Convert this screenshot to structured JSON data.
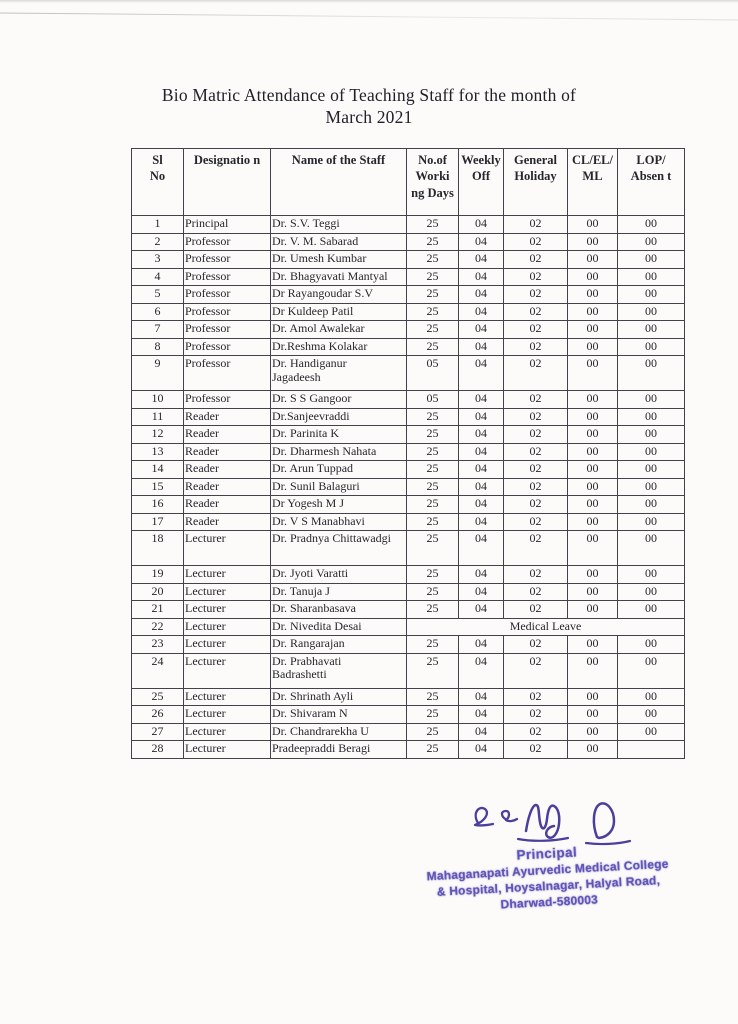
{
  "document": {
    "title_line1": "Bio Matric Attendance of Teaching Staff for the month of",
    "title_line2": "March 2021"
  },
  "table": {
    "headers": [
      "Sl\nNo",
      "Designatio n",
      "Name of the Staff",
      "No.of\nWorki\nng Days",
      "Weekly\nOff",
      "General\nHoliday",
      "CL/EL/\nML",
      "LOP/\nAbsen t"
    ],
    "rows": [
      {
        "sl": "1",
        "designation": "Principal",
        "name": "Dr. S.V. Teggi",
        "working_days": "25",
        "weekly_off": "04",
        "general_holiday": "02",
        "cl_el_ml": "00",
        "lop_absent": "00"
      },
      {
        "sl": "2",
        "designation": "Professor",
        "name": "Dr. V. M. Sabarad",
        "working_days": "25",
        "weekly_off": "04",
        "general_holiday": "02",
        "cl_el_ml": "00",
        "lop_absent": "00"
      },
      {
        "sl": "3",
        "designation": "Professor",
        "name": "Dr. Umesh Kumbar",
        "working_days": "25",
        "weekly_off": "04",
        "general_holiday": "02",
        "cl_el_ml": "00",
        "lop_absent": "00"
      },
      {
        "sl": "4",
        "designation": "Professor",
        "name": "Dr. Bhagyavati Mantyal",
        "working_days": "25",
        "weekly_off": "04",
        "general_holiday": "02",
        "cl_el_ml": "00",
        "lop_absent": "00"
      },
      {
        "sl": "5",
        "designation": "Professor",
        "name": "Dr Rayangoudar S.V",
        "working_days": "25",
        "weekly_off": "04",
        "general_holiday": "02",
        "cl_el_ml": "00",
        "lop_absent": "00"
      },
      {
        "sl": "6",
        "designation": "Professor",
        "name": "Dr Kuldeep Patil",
        "working_days": "25",
        "weekly_off": "04",
        "general_holiday": "02",
        "cl_el_ml": "00",
        "lop_absent": "00"
      },
      {
        "sl": "7",
        "designation": "Professor",
        "name": "Dr. Amol Awalekar",
        "working_days": "25",
        "weekly_off": "04",
        "general_holiday": "02",
        "cl_el_ml": "00",
        "lop_absent": "00"
      },
      {
        "sl": "8",
        "designation": "Professor",
        "name": "Dr.Reshma Kolakar",
        "working_days": "25",
        "weekly_off": "04",
        "general_holiday": "02",
        "cl_el_ml": "00",
        "lop_absent": "00"
      },
      {
        "sl": "9",
        "designation": "Professor",
        "name": "Dr. Handiganur\nJagadeesh",
        "working_days": "05",
        "weekly_off": "04",
        "general_holiday": "02",
        "cl_el_ml": "00",
        "lop_absent": "00",
        "tall": true
      },
      {
        "sl": "10",
        "designation": "Professor",
        "name": "Dr. S S Gangoor",
        "working_days": "05",
        "weekly_off": "04",
        "general_holiday": "02",
        "cl_el_ml": "00",
        "lop_absent": "00"
      },
      {
        "sl": "11",
        "designation": "Reader",
        "name": "Dr.Sanjeevraddi",
        "working_days": "25",
        "weekly_off": "04",
        "general_holiday": "02",
        "cl_el_ml": "00",
        "lop_absent": "00"
      },
      {
        "sl": "12",
        "designation": "Reader",
        "name": "Dr. Parinita K",
        "working_days": "25",
        "weekly_off": "04",
        "general_holiday": "02",
        "cl_el_ml": "00",
        "lop_absent": "00"
      },
      {
        "sl": "13",
        "designation": "Reader",
        "name": "Dr. Dharmesh Nahata",
        "working_days": "25",
        "weekly_off": "04",
        "general_holiday": "02",
        "cl_el_ml": "00",
        "lop_absent": "00"
      },
      {
        "sl": "14",
        "designation": "Reader",
        "name": "Dr. Arun Tuppad",
        "working_days": "25",
        "weekly_off": "04",
        "general_holiday": "02",
        "cl_el_ml": "00",
        "lop_absent": "00"
      },
      {
        "sl": "15",
        "designation": "Reader",
        "name": "Dr. Sunil Balaguri",
        "working_days": "25",
        "weekly_off": "04",
        "general_holiday": "02",
        "cl_el_ml": "00",
        "lop_absent": "00"
      },
      {
        "sl": "16",
        "designation": "Reader",
        "name": "Dr Yogesh M J",
        "working_days": "25",
        "weekly_off": "04",
        "general_holiday": "02",
        "cl_el_ml": "00",
        "lop_absent": "00"
      },
      {
        "sl": "17",
        "designation": "Reader",
        "name": "Dr. V S Manabhavi",
        "working_days": "25",
        "weekly_off": "04",
        "general_holiday": "02",
        "cl_el_ml": "00",
        "lop_absent": "00"
      },
      {
        "sl": "18",
        "designation": "Lecturer",
        "name": "Dr. Pradnya Chittawadgi",
        "working_days": "25",
        "weekly_off": "04",
        "general_holiday": "02",
        "cl_el_ml": "00",
        "lop_absent": "00",
        "tall": true
      },
      {
        "sl": "19",
        "designation": "Lecturer",
        "name": "Dr. Jyoti Varatti",
        "working_days": "25",
        "weekly_off": "04",
        "general_holiday": "02",
        "cl_el_ml": "00",
        "lop_absent": "00"
      },
      {
        "sl": "20",
        "designation": "Lecturer",
        "name": "Dr. Tanuja J",
        "working_days": "25",
        "weekly_off": "04",
        "general_holiday": "02",
        "cl_el_ml": "00",
        "lop_absent": "00"
      },
      {
        "sl": "21",
        "designation": "Lecturer",
        "name": "Dr. Sharanbasava",
        "working_days": "25",
        "weekly_off": "04",
        "general_holiday": "02",
        "cl_el_ml": "00",
        "lop_absent": "00"
      },
      {
        "sl": "22",
        "designation": "Lecturer",
        "name": "Dr. Nivedita Desai",
        "merged_note": "Medical Leave"
      },
      {
        "sl": "23",
        "designation": "Lecturer",
        "name": "Dr. Rangarajan",
        "working_days": "25",
        "weekly_off": "04",
        "general_holiday": "02",
        "cl_el_ml": "00",
        "lop_absent": "00"
      },
      {
        "sl": "24",
        "designation": "Lecturer",
        "name": "Dr. Prabhavati\nBadrashetti",
        "working_days": "25",
        "weekly_off": "04",
        "general_holiday": "02",
        "cl_el_ml": "00",
        "lop_absent": "00",
        "tall": true
      },
      {
        "sl": "25",
        "designation": "Lecturer",
        "name": "Dr. Shrinath Ayli",
        "working_days": "25",
        "weekly_off": "04",
        "general_holiday": "02",
        "cl_el_ml": "00",
        "lop_absent": "00"
      },
      {
        "sl": "26",
        "designation": "Lecturer",
        "name": "Dr. Shivaram N",
        "working_days": "25",
        "weekly_off": "04",
        "general_holiday": "02",
        "cl_el_ml": "00",
        "lop_absent": "00"
      },
      {
        "sl": "27",
        "designation": "Lecturer",
        "name": "Dr. Chandrarekha U",
        "working_days": "25",
        "weekly_off": "04",
        "general_holiday": "02",
        "cl_el_ml": "00",
        "lop_absent": "00"
      },
      {
        "sl": "28",
        "designation": "Lecturer",
        "name": "Pradeepraddi Beragi",
        "working_days": "25",
        "weekly_off": "04",
        "general_holiday": "02",
        "cl_el_ml": "00",
        "lop_absent": ""
      }
    ]
  },
  "stamp": {
    "title": "Principal",
    "line2": "Mahaganapati Ayurvedic Medical College",
    "line3": "& Hospital, Hoysalnagar, Halyal Road,",
    "line4": "Dharwad-580003"
  },
  "colors": {
    "stamp_purple": "#5f54b8",
    "signature_ink": "#4b3f9e",
    "table_border": "#43434b",
    "text": "#26262e"
  }
}
